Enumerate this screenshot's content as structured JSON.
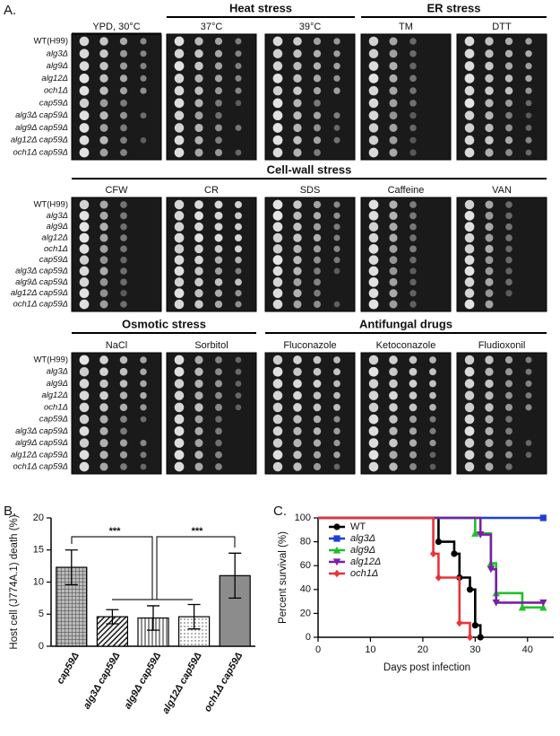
{
  "panel_a": {
    "label": "A.",
    "strains": [
      "WT(H99)",
      "alg3Δ",
      "alg9Δ",
      "alg12Δ",
      "och1Δ",
      "cap59Δ",
      "alg3Δ cap59Δ",
      "alg9Δ cap59Δ",
      "alg12Δ cap59Δ",
      "och1Δ cap59Δ"
    ],
    "rows": [
      {
        "groups": [
          {
            "conditions": [
              "YPD, 30°C"
            ]
          },
          {
            "name": "Heat stress",
            "conditions": [
              "37°C",
              "39°C"
            ]
          },
          {
            "name": "ER stress",
            "conditions": [
              "TM",
              "DTT"
            ]
          }
        ]
      },
      {
        "groups": [
          {
            "name": "Cell-wall stress",
            "conditions": [
              "CFW",
              "CR",
              "SDS",
              "Caffeine",
              "VAN"
            ]
          }
        ]
      },
      {
        "groups": [
          {
            "name": "Osmotic stress",
            "conditions": [
              "NaCl",
              "Sorbitol"
            ]
          },
          {
            "name": "Antifungal drugs",
            "conditions": [
              "Fluconazole",
              "Ketoconazole",
              "Fludioxonil"
            ]
          }
        ]
      }
    ]
  },
  "chart_data": [
    {
      "type": "bar",
      "label": "B.",
      "y_label": "Host cell (J774A.1) death (%)",
      "categories": [
        "cap59Δ",
        "alg3Δ cap59Δ",
        "alg9Δ cap59Δ",
        "alg12Δ cap59Δ",
        "och1Δ cap59Δ"
      ],
      "values": [
        12.3,
        4.6,
        4.4,
        4.6,
        11.0
      ],
      "errors": [
        2.7,
        1.1,
        1.9,
        1.9,
        3.5
      ],
      "colors": [
        "#999999",
        "#222222",
        "#222222",
        "#444444",
        "#8c8c8c"
      ],
      "patterns": [
        "grid",
        "diagonal",
        "vertical",
        "dots",
        "solid"
      ],
      "ylim": [
        0,
        20
      ],
      "yticks": [
        0,
        5,
        10,
        15,
        20
      ],
      "annotations": [
        "***",
        "***"
      ]
    },
    {
      "type": "line",
      "label": "C.",
      "x_label": "Days post infection",
      "y_label": "Percent survival (%)",
      "xlim": [
        0,
        45
      ],
      "xticks": [
        0,
        10,
        20,
        30,
        40
      ],
      "ylim": [
        0,
        100
      ],
      "yticks": [
        0,
        20,
        40,
        60,
        80,
        100
      ],
      "legend": "upper left",
      "series": [
        {
          "name": "WT",
          "color": "#000000",
          "marker": "circle",
          "x": [
            0,
            23,
            26,
            27,
            29,
            30,
            31
          ],
          "values": [
            100,
            80,
            70,
            50,
            40,
            10,
            0
          ]
        },
        {
          "name": "alg3Δ",
          "color": "#1f3fd6",
          "marker": "square",
          "x": [
            0,
            43
          ],
          "values": [
            100,
            100
          ]
        },
        {
          "name": "alg9Δ",
          "color": "#22c02a",
          "marker": "triangle-up",
          "x": [
            0,
            30,
            33,
            34,
            39,
            43
          ],
          "values": [
            100,
            87,
            62,
            37,
            25,
            25
          ]
        },
        {
          "name": "alg12Δ",
          "color": "#7a1fa8",
          "marker": "triangle-down",
          "x": [
            0,
            31,
            33,
            34,
            43
          ],
          "values": [
            100,
            86,
            57,
            29,
            29
          ]
        },
        {
          "name": "och1Δ",
          "color": "#e8333a",
          "marker": "diamond",
          "x": [
            0,
            22,
            23,
            27,
            29
          ],
          "values": [
            100,
            70,
            50,
            12,
            0
          ]
        }
      ]
    }
  ]
}
